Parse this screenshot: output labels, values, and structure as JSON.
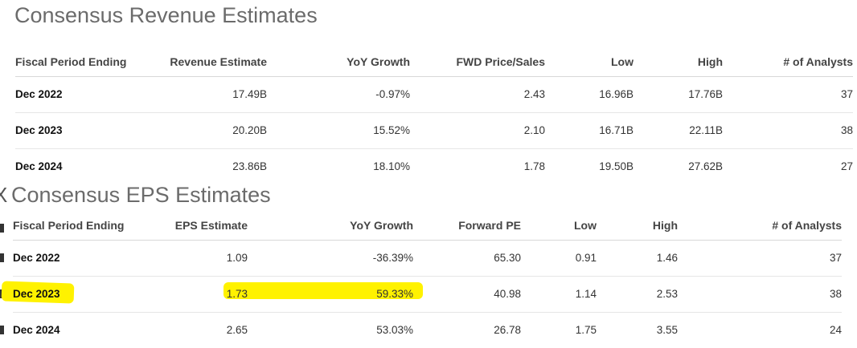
{
  "revenue": {
    "title": "Consensus Revenue Estimates",
    "headers": [
      "Fiscal Period Ending",
      "Revenue Estimate",
      "YoY Growth",
      "FWD Price/Sales",
      "Low",
      "High",
      "# of Analysts"
    ],
    "rows": [
      [
        "Dec 2022",
        "17.49B",
        "-0.97%",
        "2.43",
        "16.96B",
        "17.76B",
        "37"
      ],
      [
        "Dec 2023",
        "20.20B",
        "15.52%",
        "2.10",
        "16.71B",
        "22.11B",
        "38"
      ],
      [
        "Dec 2024",
        "23.86B",
        "18.10%",
        "1.78",
        "19.50B",
        "27.62B",
        "27"
      ]
    ]
  },
  "eps": {
    "title": "Consensus EPS Estimates",
    "headers": [
      "Fiscal Period Ending",
      "EPS Estimate",
      "YoY Growth",
      "Forward PE",
      "Low",
      "High",
      "# of Analysts"
    ],
    "rows": [
      [
        "Dec 2022",
        "1.09",
        "-36.39%",
        "65.30",
        "0.91",
        "1.46",
        "37"
      ],
      [
        "Dec 2023",
        "1.73",
        "59.33%",
        "40.98",
        "1.14",
        "2.53",
        "38"
      ],
      [
        "Dec 2024",
        "2.65",
        "53.03%",
        "26.78",
        "1.75",
        "3.55",
        "24"
      ]
    ]
  },
  "highlight_color": "#fff200",
  "clipped_glyph": "X"
}
